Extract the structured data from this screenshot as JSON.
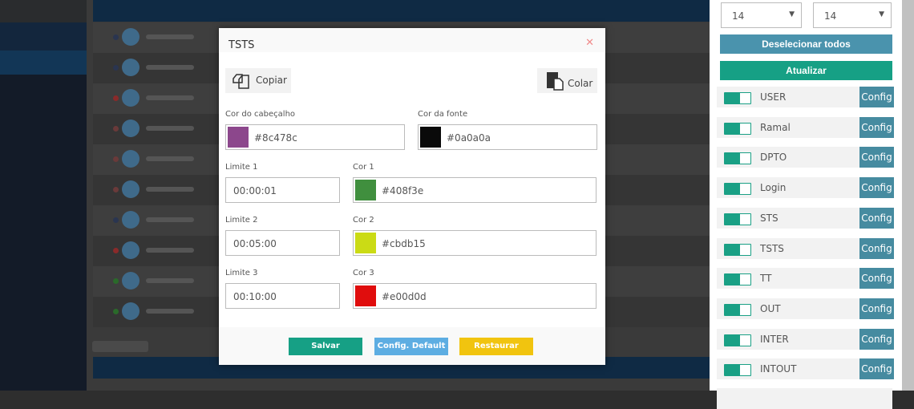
{
  "modal": {
    "title": "TSTS",
    "close_icon": "close-icon",
    "copy_label": "Copiar",
    "paste_label": "Colar",
    "header_color": {
      "label": "Cor do cabeçalho",
      "value": "#8c478c"
    },
    "font_color": {
      "label": "Cor da fonte",
      "value": "#0a0a0a"
    },
    "limits": [
      {
        "label": "Limite 1",
        "value": "00:00:01",
        "color_label": "Cor 1",
        "color": "#408f3e"
      },
      {
        "label": "Limite 2",
        "value": "00:05:00",
        "color_label": "Cor 2",
        "color": "#cbdb15"
      },
      {
        "label": "Limite 3",
        "value": "00:10:00",
        "color_label": "Cor 3",
        "color": "#e00d0d"
      }
    ],
    "footer": {
      "save": "Salvar",
      "default": "Config. Default",
      "restore": "Restaurar"
    }
  },
  "right_panel": {
    "select_1": "14",
    "select_2": "14",
    "deselect_all": "Deselecionar todos",
    "update": "Atualizar",
    "config_label": "Config",
    "columns": [
      {
        "label": "USER",
        "enabled": true
      },
      {
        "label": "Ramal",
        "enabled": true
      },
      {
        "label": "DPTO",
        "enabled": true
      },
      {
        "label": "Login",
        "enabled": true
      },
      {
        "label": "STS",
        "enabled": true
      },
      {
        "label": "TSTS",
        "enabled": true
      },
      {
        "label": "TT",
        "enabled": true
      },
      {
        "label": "OUT",
        "enabled": true
      },
      {
        "label": "INTER",
        "enabled": true
      },
      {
        "label": "INTOUT",
        "enabled": true
      }
    ]
  },
  "colors": {
    "accent_green": "#16a085",
    "accent_blue": "#468ba0",
    "default_btn": "#5dade2",
    "restore_btn": "#f1c40f"
  },
  "background_status_dots": [
    "#2a3550",
    "#2a3550",
    "#8a2a2a",
    "#6a3a3a",
    "#6a3a3a",
    "#6a3a3a",
    "#2a3550",
    "#8a2a2a",
    "#2a6a2a",
    "#2a6a2a"
  ]
}
